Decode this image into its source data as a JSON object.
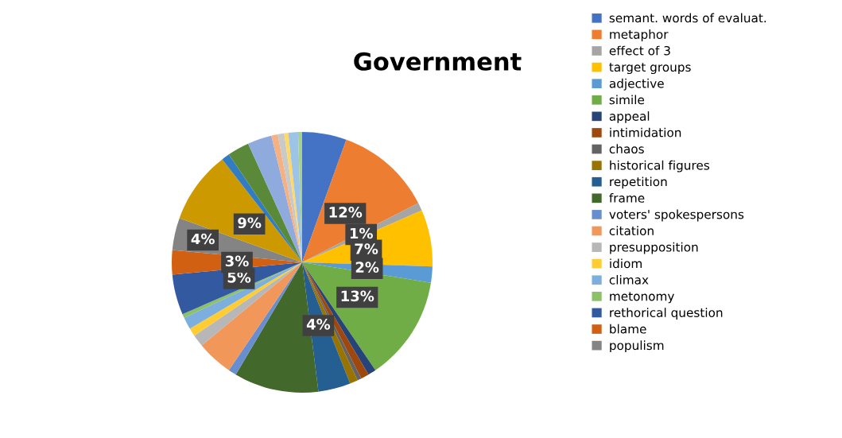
{
  "chart_data": {
    "type": "pie",
    "title": "Government",
    "categories": [
      "semant. words of evaluat.",
      "metaphor",
      "effect of 3",
      "target groups",
      "adjective",
      "simile",
      "appeal",
      "intimidation",
      "chaos",
      "historical figures",
      "repetition",
      "frame",
      "voters' spokespersons",
      "citation",
      "presupposition",
      "idiom",
      "climax",
      "metonomy",
      "rethorical question",
      "blame",
      "populism",
      null,
      null,
      null,
      null,
      null,
      null,
      null,
      null,
      null
    ],
    "values": [
      5.5,
      12,
      1,
      7,
      2,
      13,
      1,
      1,
      0.5,
      1,
      4,
      10.5,
      1,
      4.5,
      1.5,
      1,
      1.5,
      0.5,
      5,
      3,
      4,
      9,
      1,
      2.7,
      3,
      0.8,
      0.8,
      0.5,
      1.2,
      0.5
    ],
    "colors": [
      "#4472c4",
      "#ed7d31",
      "#a5a5a5",
      "#ffc000",
      "#5b9bd5",
      "#70ad47",
      "#264478",
      "#9e480e",
      "#636363",
      "#997300",
      "#255e91",
      "#43682b",
      "#698ed0",
      "#f1975a",
      "#b7b7b7",
      "#ffcd33",
      "#7cafdd",
      "#8cc168",
      "#335aa1",
      "#d26012",
      "#848484",
      "#cc9a00",
      "#327dc2",
      "#5a8a39",
      "#8faadc",
      "#f4b183",
      "#c9c9c9",
      "#ffd966",
      "#9dc3e6",
      "#a9d18e"
    ],
    "value_labels": [
      null,
      "12%",
      "1%",
      "7%",
      "2%",
      "13%",
      null,
      null,
      null,
      null,
      "4%",
      null,
      null,
      null,
      null,
      null,
      null,
      null,
      "5%",
      "3%",
      "4%",
      "9%",
      null,
      null,
      null,
      null,
      null,
      null,
      null,
      null
    ],
    "legend": "right"
  }
}
